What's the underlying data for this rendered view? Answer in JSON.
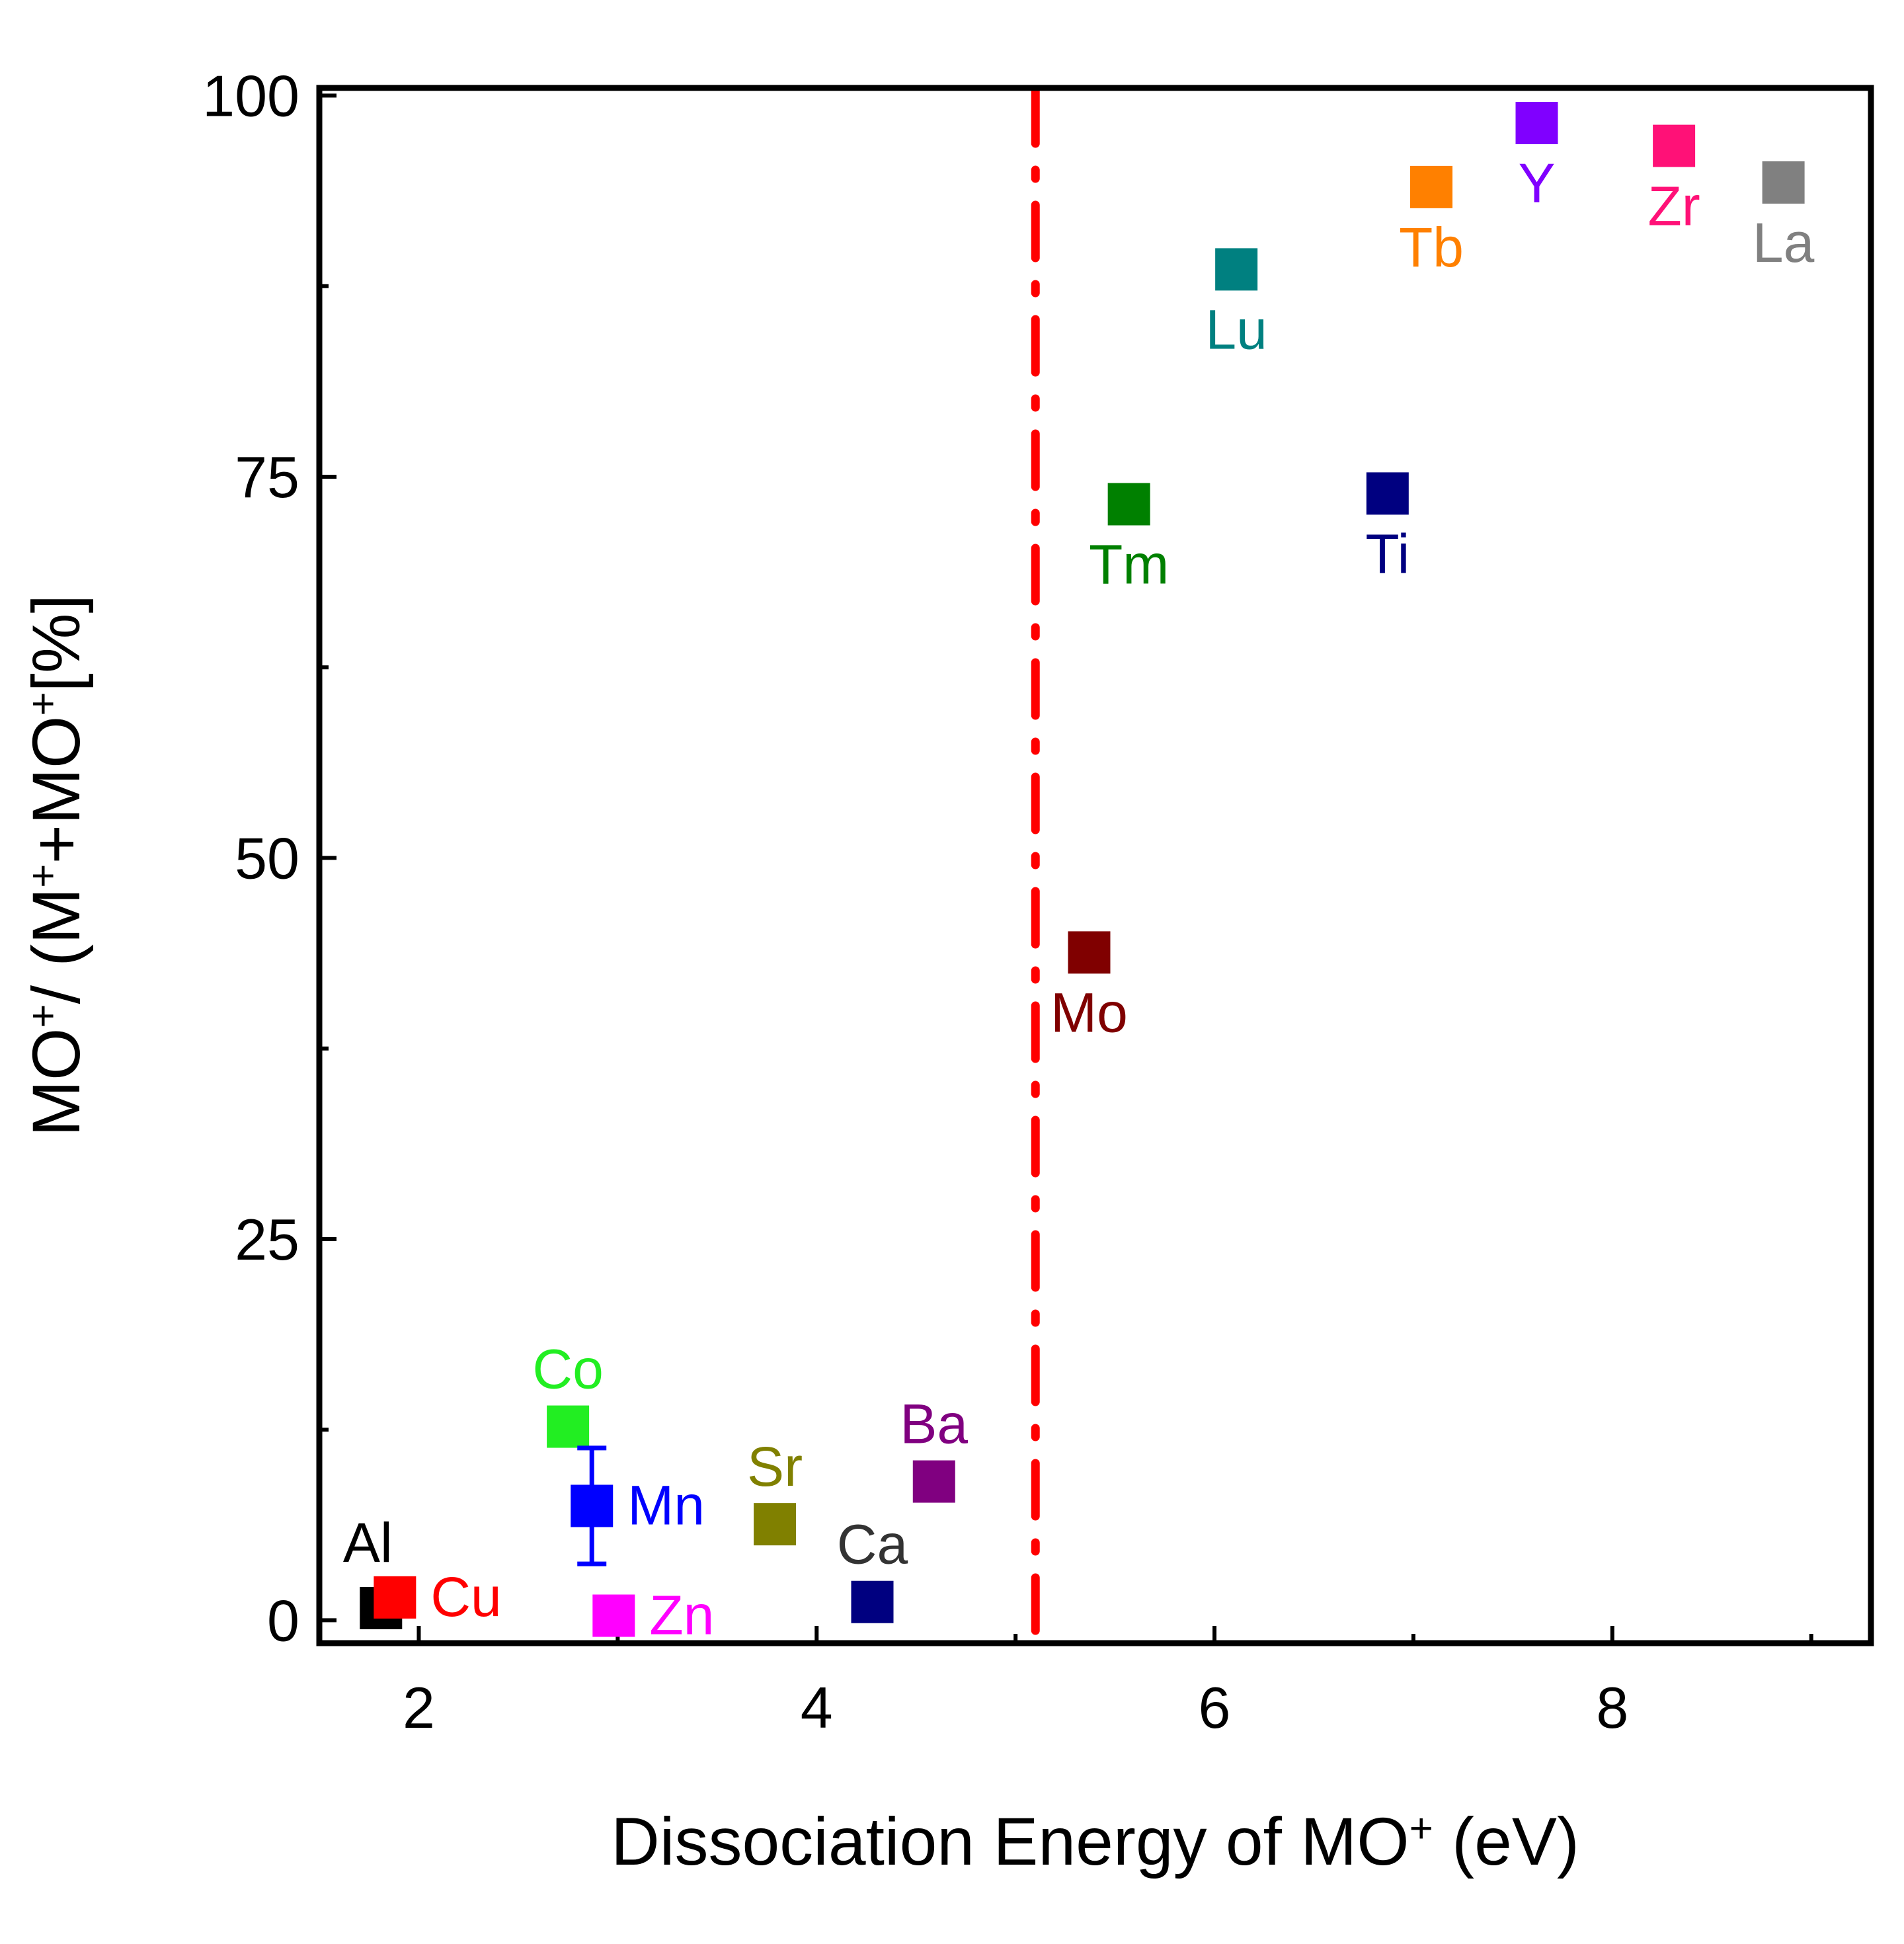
{
  "chart_data": {
    "type": "scatter",
    "title": "",
    "xlabel": "Dissociation Energy of MO",
    "xlabel_sup": "+",
    "xlabel_suffix": " (eV)",
    "ylabel_parts": [
      {
        "text": "MO"
      },
      {
        "text": "+",
        "sup": true
      },
      {
        "text": "/ (M"
      },
      {
        "text": "+",
        "sup": true
      },
      {
        "text": "+MO"
      },
      {
        "text": "+",
        "sup": true
      },
      {
        "text": "[%]"
      }
    ],
    "xlim": [
      1.5,
      9.3
    ],
    "ylim": [
      -1.5,
      100.5
    ],
    "xticks": [
      2,
      4,
      6,
      8
    ],
    "xticks_minor": [
      3,
      5,
      7,
      9
    ],
    "yticks": [
      0,
      25,
      50,
      75,
      100
    ],
    "yticks_minor": [
      12.5,
      37.5,
      62.5,
      87.5
    ],
    "grid": false,
    "threshold_line": {
      "x": 5.1,
      "color": "#ff0000",
      "style": "dash-dot"
    },
    "points": [
      {
        "label": "Al",
        "x": 1.81,
        "y": 0.8,
        "color": "#000000",
        "label_pos": "above-left"
      },
      {
        "label": "Cu",
        "x": 1.88,
        "y": 1.5,
        "color": "#ff0000",
        "label_pos": "right"
      },
      {
        "label": "Co",
        "x": 2.75,
        "y": 12.7,
        "color": "#22ee22",
        "label_pos": "above"
      },
      {
        "label": "Mn",
        "x": 2.87,
        "y": 7.5,
        "color": "#0000ff",
        "label_pos": "right",
        "error": 3.8
      },
      {
        "label": "Zn",
        "x": 2.98,
        "y": 0.3,
        "color": "#ff00ff",
        "label_pos": "right"
      },
      {
        "label": "Sr",
        "x": 3.79,
        "y": 6.3,
        "color": "#808000",
        "label_pos": "above"
      },
      {
        "label": "Ca",
        "x": 4.28,
        "y": 1.2,
        "color": "#000080",
        "label_pos": "above",
        "label_color": "#333333"
      },
      {
        "label": "Ba",
        "x": 4.59,
        "y": 9.1,
        "color": "#800080",
        "label_pos": "above"
      },
      {
        "label": "Mo",
        "x": 5.37,
        "y": 43.8,
        "color": "#800000",
        "label_pos": "below"
      },
      {
        "label": "Tm",
        "x": 5.57,
        "y": 73.2,
        "color": "#008000",
        "label_pos": "below"
      },
      {
        "label": "Lu",
        "x": 6.11,
        "y": 88.6,
        "color": "#008080",
        "label_pos": "below"
      },
      {
        "label": "Ti",
        "x": 6.87,
        "y": 73.9,
        "color": "#000080",
        "label_pos": "below"
      },
      {
        "label": "Tb",
        "x": 7.09,
        "y": 94.0,
        "color": "#ff8000",
        "label_pos": "below"
      },
      {
        "label": "Y",
        "x": 7.62,
        "y": 98.2,
        "color": "#8000ff",
        "label_pos": "below"
      },
      {
        "label": "Zr",
        "x": 8.31,
        "y": 96.7,
        "color": "#ff1177",
        "label_pos": "below"
      },
      {
        "label": "La",
        "x": 8.86,
        "y": 94.3,
        "color": "#808080",
        "label_pos": "below"
      }
    ]
  }
}
